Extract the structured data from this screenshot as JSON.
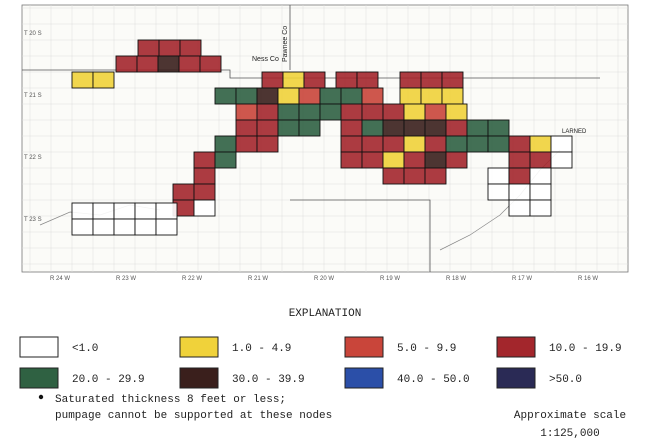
{
  "map": {
    "county_ness": "Ness Co",
    "county_pawnee": "Pawnee Co",
    "city": "LARNED",
    "townships": [
      "T 20 S",
      "T 21 S",
      "T 22 S",
      "T 23 S"
    ],
    "ranges": [
      "R 24 W",
      "R 23 W",
      "R 22 W",
      "R 21 W",
      "R 20 W",
      "R 19 W",
      "R 18 W",
      "R 17 W",
      "R 16 W"
    ]
  },
  "explanation": {
    "title": "EXPLANATION",
    "items": [
      {
        "label": "<1.0",
        "color": "#ffffff"
      },
      {
        "label": "1.0 - 4.9",
        "color": "#f0d23a"
      },
      {
        "label": "5.0 - 9.9",
        "color": "#c9453a"
      },
      {
        "label": "10.0 - 19.9",
        "color": "#a3262c"
      },
      {
        "label": "20.0 - 29.9",
        "color": "#2f6142"
      },
      {
        "label": "30.0 - 39.9",
        "color": "#3a1f1c"
      },
      {
        "label": "40.0 - 50.0",
        "color": "#2b4fa8"
      },
      {
        "label": ">50.0",
        "color": "#2a2a55"
      }
    ],
    "note": [
      "Saturated thickness 8 feet or less;",
      "pumpage cannot be supported at these nodes"
    ],
    "scale": [
      "Approximate scale",
      "1:125,000"
    ]
  }
}
